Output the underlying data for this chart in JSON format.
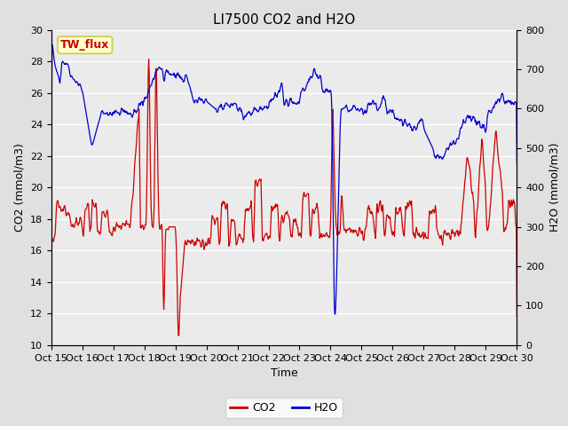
{
  "title": "LI7500 CO2 and H2O",
  "xlabel": "Time",
  "ylabel_left": "CO2 (mmol/m3)",
  "ylabel_right": "H2O (mmol/m3)",
  "xlim": [
    0,
    960
  ],
  "ylim_left": [
    10,
    30
  ],
  "ylim_right": [
    0,
    800
  ],
  "xtick_labels": [
    "Oct 15",
    "Oct 16",
    "Oct 17",
    "Oct 18",
    "Oct 19",
    "Oct 20",
    "Oct 21",
    "Oct 22",
    "Oct 23",
    "Oct 24",
    "Oct 25",
    "Oct 26",
    "Oct 27",
    "Oct 28",
    "Oct 29",
    "Oct 30"
  ],
  "yticks_left": [
    10,
    12,
    14,
    16,
    18,
    20,
    22,
    24,
    26,
    28,
    30
  ],
  "yticks_right": [
    0,
    100,
    200,
    300,
    400,
    500,
    600,
    700,
    800
  ],
  "co2_color": "#cc0000",
  "h2o_color": "#0000cc",
  "bg_color": "#e0e0e0",
  "plot_bg_color": "#ebebeb",
  "grid_color": "#ffffff",
  "annotation_text": "TW_flux",
  "annotation_fg": "#cc0000",
  "annotation_bg": "#ffffcc",
  "annotation_border": "#cccc44",
  "legend_co2": "CO2",
  "legend_h2o": "H2O",
  "linewidth": 0.9
}
